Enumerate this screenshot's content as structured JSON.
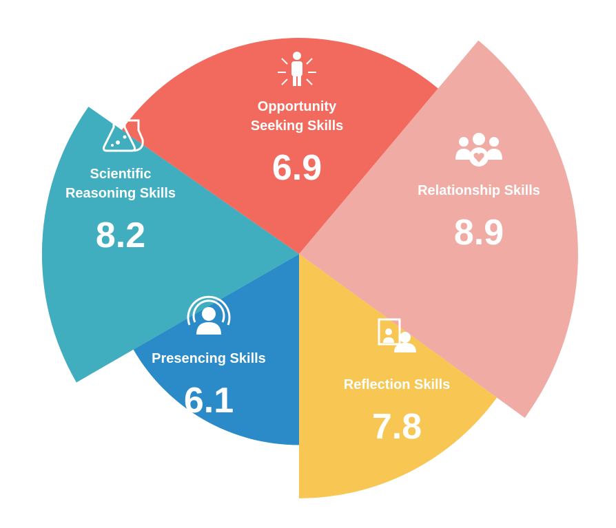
{
  "chart_data": {
    "type": "polar-area",
    "segments": [
      {
        "name": "Opportunity Seeking Skills",
        "title_lines": [
          "Opportunity",
          "Seeking Skills"
        ],
        "value": 6.9,
        "value_label": "6.9",
        "color": "#F26A5E",
        "icon": "person-arrows-icon"
      },
      {
        "name": "Relationship Skills",
        "title_lines": [
          "Relationship Skills"
        ],
        "value": 8.9,
        "value_label": "8.9",
        "color": "#F1ABA5",
        "icon": "group-heart-icon"
      },
      {
        "name": "Reflection Skills",
        "title_lines": [
          "Reflection Skills"
        ],
        "value": 7.8,
        "value_label": "7.8",
        "color": "#F7C653",
        "icon": "mirror-person-icon"
      },
      {
        "name": "Presencing Skills",
        "title_lines": [
          "Presencing Skills"
        ],
        "value": 6.1,
        "value_label": "6.1",
        "color": "#2B8AC8",
        "icon": "presence-radar-icon"
      },
      {
        "name": "Scientific Reasoning Skills",
        "title_lines": [
          "Scientific",
          "Reasoning Skills"
        ],
        "value": 8.2,
        "value_label": "8.2",
        "color": "#40AEBE",
        "icon": "flasks-icon"
      }
    ],
    "max_value": 10
  }
}
